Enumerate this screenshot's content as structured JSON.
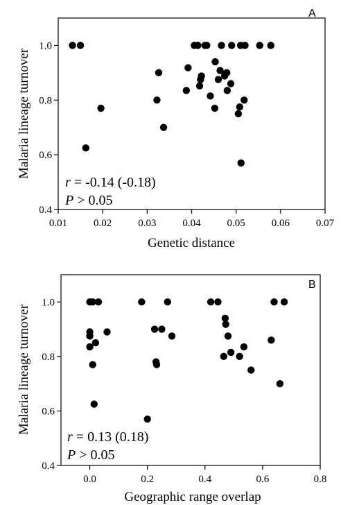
{
  "chart_data": [
    {
      "type": "scatter",
      "panel_label": "A",
      "xlabel": "Genetic distance",
      "ylabel": "Malaria lineage turnover",
      "xlim": [
        0.01,
        0.07
      ],
      "ylim": [
        0.4,
        1.1
      ],
      "xticks": [
        "0.01",
        "0.02",
        "0.03",
        "0.04",
        "0.05",
        "0.06",
        "0.07"
      ],
      "yticks": [
        "0.4",
        "0.6",
        "0.8",
        "1.0"
      ],
      "annotation_r": "r",
      "annotation_r_value": " = -0.14 (-0.18)",
      "annotation_p": "P",
      "annotation_p_value": " > 0.05",
      "points": [
        [
          0.0132,
          1.0
        ],
        [
          0.015,
          1.0
        ],
        [
          0.0162,
          0.625
        ],
        [
          0.0196,
          0.77
        ],
        [
          0.0322,
          0.8
        ],
        [
          0.0326,
          0.9
        ],
        [
          0.0337,
          0.7
        ],
        [
          0.0388,
          0.835
        ],
        [
          0.0392,
          0.918
        ],
        [
          0.0406,
          1.0
        ],
        [
          0.0414,
          1.0
        ],
        [
          0.0418,
          0.852
        ],
        [
          0.042,
          0.875
        ],
        [
          0.0422,
          0.888
        ],
        [
          0.043,
          1.0
        ],
        [
          0.0434,
          1.0
        ],
        [
          0.0442,
          0.815
        ],
        [
          0.0452,
          0.77
        ],
        [
          0.0453,
          0.94
        ],
        [
          0.046,
          0.875
        ],
        [
          0.0464,
          0.908
        ],
        [
          0.0467,
          1.0
        ],
        [
          0.0474,
          0.888
        ],
        [
          0.0479,
          0.9
        ],
        [
          0.048,
          0.835
        ],
        [
          0.0488,
          0.86
        ],
        [
          0.049,
          1.0
        ],
        [
          0.0505,
          0.75
        ],
        [
          0.0508,
          0.775
        ],
        [
          0.051,
          1.0
        ],
        [
          0.0511,
          0.57
        ],
        [
          0.0518,
          0.8
        ],
        [
          0.052,
          1.0
        ],
        [
          0.0553,
          1.0
        ],
        [
          0.0578,
          1.0
        ]
      ]
    },
    {
      "type": "scatter",
      "panel_label": "B",
      "xlabel": "Geographic range overlap",
      "ylabel": "Malaria lineage turnover",
      "xlim": [
        -0.1,
        0.8
      ],
      "ylim": [
        0.4,
        1.1
      ],
      "xticks": [
        "0.0",
        "0.2",
        "0.4",
        "0.6",
        "0.8"
      ],
      "yticks": [
        "0.4",
        "0.6",
        "0.8",
        "1.0"
      ],
      "annotation_r": "r",
      "annotation_r_value": " = 0.13 (0.18)",
      "annotation_p": "P",
      "annotation_p_value": " > 0.05",
      "points": [
        [
          0.0,
          1.0
        ],
        [
          0.01,
          1.0
        ],
        [
          0.03,
          1.0
        ],
        [
          0.0,
          0.89
        ],
        [
          0.0,
          0.875
        ],
        [
          0.0,
          0.835
        ],
        [
          0.01,
          0.77
        ],
        [
          0.02,
          0.85
        ],
        [
          0.06,
          0.89
        ],
        [
          0.015,
          0.625
        ],
        [
          0.18,
          1.0
        ],
        [
          0.2,
          0.57
        ],
        [
          0.225,
          0.9
        ],
        [
          0.23,
          0.78
        ],
        [
          0.232,
          0.77
        ],
        [
          0.25,
          0.9
        ],
        [
          0.27,
          1.0
        ],
        [
          0.285,
          0.875
        ],
        [
          0.42,
          1.0
        ],
        [
          0.445,
          1.0
        ],
        [
          0.465,
          0.8
        ],
        [
          0.47,
          0.94
        ],
        [
          0.472,
          0.918
        ],
        [
          0.48,
          0.875
        ],
        [
          0.49,
          0.815
        ],
        [
          0.52,
          0.8
        ],
        [
          0.535,
          0.835
        ],
        [
          0.56,
          0.75
        ],
        [
          0.63,
          0.86
        ],
        [
          0.64,
          1.0
        ],
        [
          0.66,
          0.7
        ],
        [
          0.675,
          1.0
        ]
      ]
    }
  ]
}
